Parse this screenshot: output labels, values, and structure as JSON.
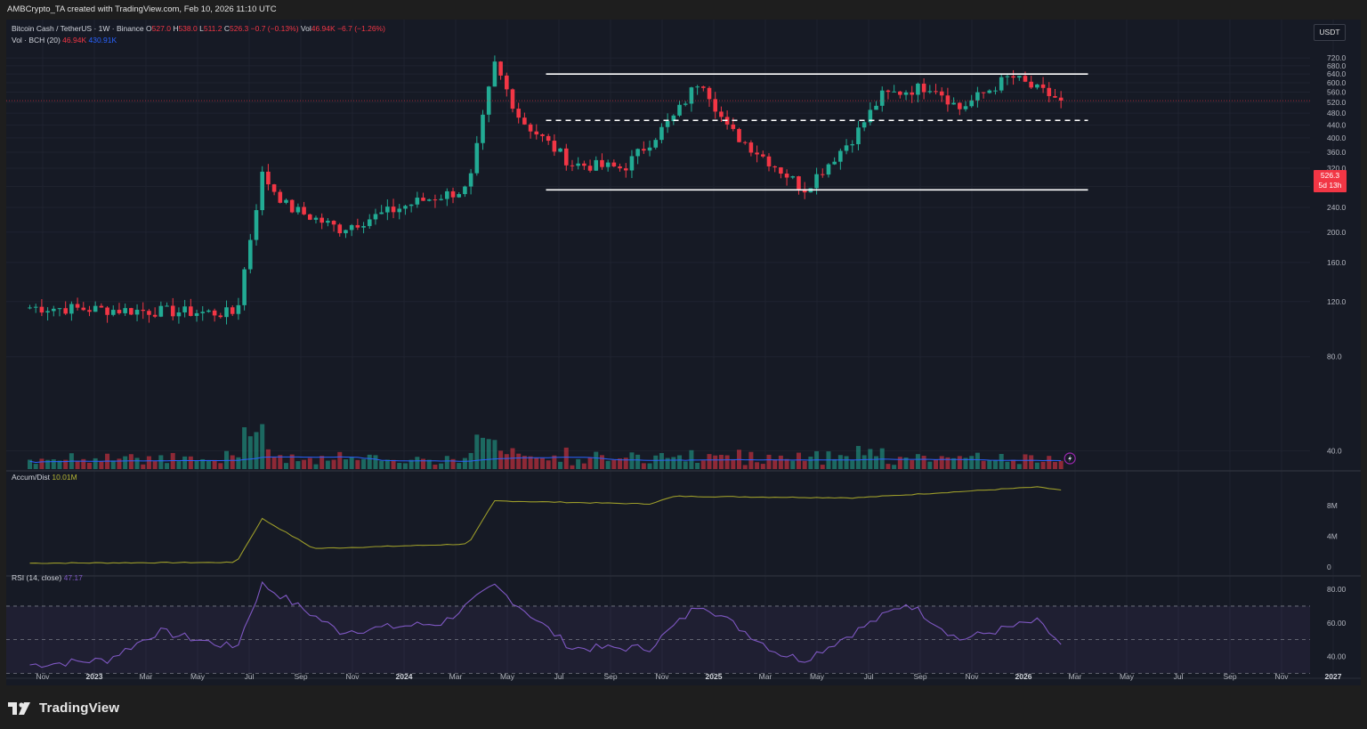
{
  "header": {
    "caption": "AMBCrypto_TA created with TradingView.com, Feb 10, 2026 11:10 UTC"
  },
  "legend": {
    "symbol": "Bitcoin Cash / TetherUS · 1W · Binance",
    "o_label": "O",
    "o": "527.0",
    "h_label": "H",
    "h": "538.0",
    "l_label": "L",
    "l": "511.2",
    "c_label": "C",
    "c": "526.3",
    "change": "−0.7 (−0.13%)",
    "vol_label": "Vol",
    "vol": "46.94K",
    "vol_change": "−6.7 (−1.26%)",
    "vol_line_name": "Vol · BCH (20)",
    "vol_value": "46.94K",
    "vol_ma": "430.91K",
    "ad_name": "Accum/Dist",
    "ad_value": "10.01M",
    "rsi_name": "RSI (14, close)",
    "rsi_value": "47.17"
  },
  "currency_badge": "USDT",
  "price_badge": {
    "price": "526.3",
    "countdown": "5d 13h"
  },
  "colors": {
    "up": "#22ab94",
    "down": "#f23645",
    "volume_ma": "#2962ff",
    "ad_line": "#9c9c2a",
    "rsi_line": "#7e57c2",
    "rsi_band": "#7e57c2",
    "levels": "#ffffff",
    "background": "#161a25"
  },
  "footer": {
    "brand": "TradingView",
    "logo_icon": "tradingview-logo-icon"
  },
  "chart_data": [
    {
      "type": "candlestick",
      "title": "Bitcoin Cash / TetherUS · 1W · Binance",
      "x_axis_labels": [
        "Nov",
        "2023",
        "Mar",
        "May",
        "Jul",
        "Sep",
        "Nov",
        "2024",
        "Mar",
        "May",
        "Jul",
        "Sep",
        "Nov",
        "2025",
        "Mar",
        "May",
        "Jul",
        "Sep",
        "Nov",
        "2026",
        "Mar",
        "May",
        "Jul",
        "Sep",
        "Nov",
        "2027"
      ],
      "y_ticks": [
        40,
        80,
        120,
        160,
        200,
        240,
        280,
        320,
        360,
        400,
        440,
        480,
        520,
        560,
        600,
        640,
        680,
        720
      ],
      "ylim": [
        35,
        735
      ],
      "key_points": [
        {
          "x": "2022-10",
          "y": 115
        },
        {
          "x": "2023-06",
          "y": 110
        },
        {
          "x": "2023-07",
          "y": 305
        },
        {
          "x": "2023-08",
          "y": 240
        },
        {
          "x": "2023-10",
          "y": 205
        },
        {
          "x": "2024-01",
          "y": 250
        },
        {
          "x": "2024-03",
          "y": 275
        },
        {
          "x": "2024-04",
          "y": 690
        },
        {
          "x": "2024-05",
          "y": 460
        },
        {
          "x": "2024-07",
          "y": 330
        },
        {
          "x": "2024-09",
          "y": 320
        },
        {
          "x": "2024-11",
          "y": 470
        },
        {
          "x": "2024-12",
          "y": 625
        },
        {
          "x": "2025-01",
          "y": 430
        },
        {
          "x": "2025-03",
          "y": 320
        },
        {
          "x": "2025-04",
          "y": 275
        },
        {
          "x": "2025-06",
          "y": 410
        },
        {
          "x": "2025-07",
          "y": 545
        },
        {
          "x": "2025-09",
          "y": 590
        },
        {
          "x": "2025-10",
          "y": 495
        },
        {
          "x": "2025-12",
          "y": 630
        },
        {
          "x": "2026-01",
          "y": 570
        },
        {
          "x": "2026-02",
          "y": 526.3
        }
      ],
      "levels": [
        {
          "style": "solid",
          "value": 640,
          "from": "2024-06",
          "to": "2026-03"
        },
        {
          "style": "dashed",
          "value": 455,
          "from": "2024-06",
          "to": "2026-03"
        },
        {
          "style": "solid",
          "value": 273,
          "from": "2024-06",
          "to": "2026-03"
        }
      ],
      "last_price": 526.3
    },
    {
      "type": "line",
      "title": "Accum/Dist",
      "y_ticks": [
        "0",
        "4M",
        "8M"
      ],
      "ylim": [
        0,
        11
      ],
      "key_points": [
        {
          "x": "2022-10",
          "y": 0.5
        },
        {
          "x": "2023-06",
          "y": 0.6
        },
        {
          "x": "2023-07",
          "y": 6.3
        },
        {
          "x": "2023-09",
          "y": 2.4
        },
        {
          "x": "2024-03",
          "y": 3.0
        },
        {
          "x": "2024-04",
          "y": 8.6
        },
        {
          "x": "2024-10",
          "y": 8.2
        },
        {
          "x": "2024-11",
          "y": 9.2
        },
        {
          "x": "2025-06",
          "y": 9.0
        },
        {
          "x": "2026-01",
          "y": 10.4
        },
        {
          "x": "2026-02",
          "y": 10.01
        }
      ]
    },
    {
      "type": "line",
      "title": "RSI (14, close)",
      "y_ticks": [
        "40.00",
        "60.00",
        "80.00"
      ],
      "ylim": [
        27,
        88
      ],
      "bands": [
        30,
        50,
        70
      ],
      "key_points": [
        {
          "x": "2022-10",
          "y": 35
        },
        {
          "x": "2023-01",
          "y": 38
        },
        {
          "x": "2023-03",
          "y": 55
        },
        {
          "x": "2023-06",
          "y": 45
        },
        {
          "x": "2023-07",
          "y": 83
        },
        {
          "x": "2023-10",
          "y": 55
        },
        {
          "x": "2024-02",
          "y": 60
        },
        {
          "x": "2024-04",
          "y": 82
        },
        {
          "x": "2024-07",
          "y": 45
        },
        {
          "x": "2024-10",
          "y": 45
        },
        {
          "x": "2024-12",
          "y": 72
        },
        {
          "x": "2025-03",
          "y": 42
        },
        {
          "x": "2025-04",
          "y": 38
        },
        {
          "x": "2025-08",
          "y": 72
        },
        {
          "x": "2025-10",
          "y": 50
        },
        {
          "x": "2026-01",
          "y": 61
        },
        {
          "x": "2026-02",
          "y": 47.17
        }
      ]
    }
  ]
}
